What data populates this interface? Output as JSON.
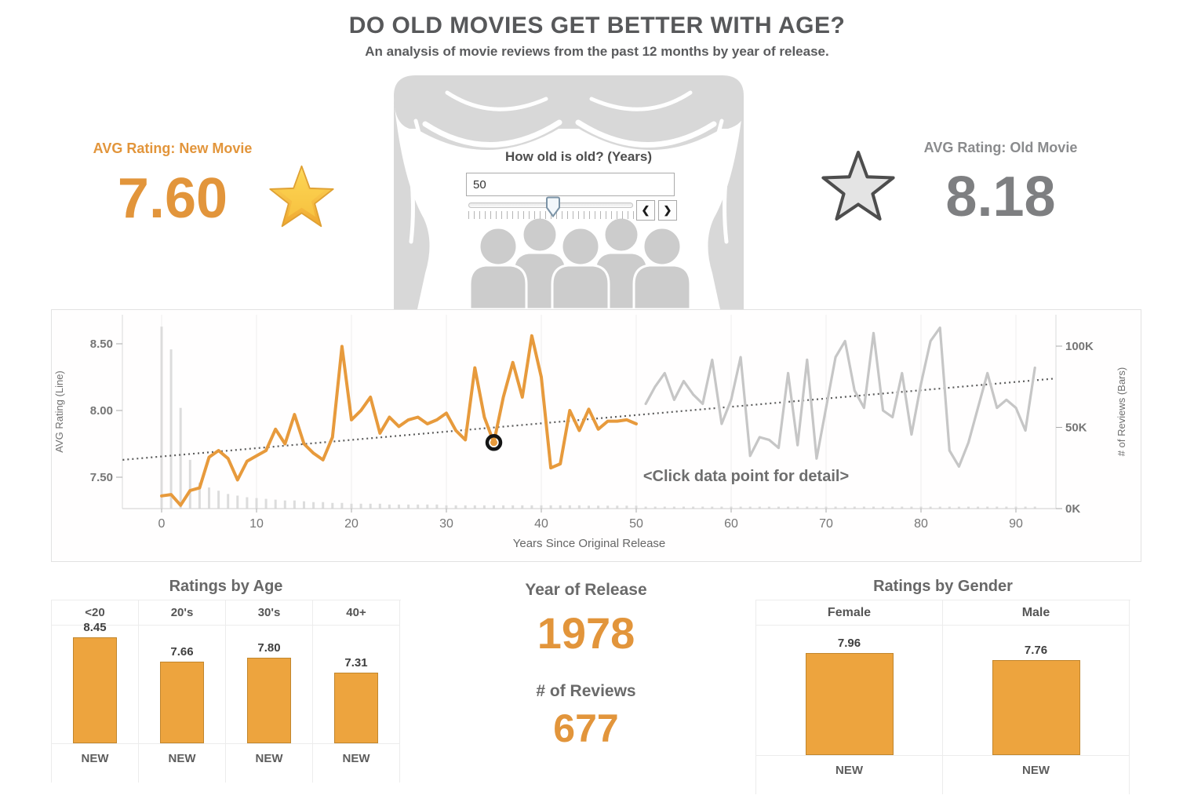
{
  "header": {
    "title": "DO OLD MOVIES GET BETTER WITH AGE?",
    "subtitle": "An analysis of movie reviews from the past 12 months by year of release."
  },
  "kpi": {
    "new_movie": {
      "label": "AVG Rating: New Movie",
      "value": "7.60"
    },
    "old_movie": {
      "label": "AVG Rating: Old Movie",
      "value": "8.18"
    }
  },
  "slider": {
    "label": "How old is old? (Years)",
    "value": "50",
    "prev_icon": "❮",
    "next_icon": "❯"
  },
  "colors": {
    "accent_orange": "#E79A3C",
    "line_gray": "#C6C6C6",
    "bars_gray": "#DCDCDC",
    "text_gray": "#6e6e6e"
  },
  "detail_panel": {
    "year_label": "Year of Release",
    "year_value": "1978",
    "reviews_label": "# of Reviews",
    "reviews_value": "677"
  },
  "chart_data": [
    {
      "type": "line+bar",
      "xlabel": "Years Since Original Release",
      "ylabel_left": "AVG Rating (Line)",
      "ylabel_right": "# of Reviews (Bars)",
      "annotation": "<Click data point for detail>",
      "x_ticks": [
        0,
        10,
        20,
        30,
        40,
        50,
        60,
        70,
        80,
        90
      ],
      "y_ticks_left": [
        "8.50",
        "8.00",
        "7.50"
      ],
      "y_tick_left_values": [
        8.5,
        8.0,
        7.5
      ],
      "y_ticks_right": [
        "100K",
        "50K",
        "0K"
      ],
      "y_tick_right_values": [
        100,
        50,
        0
      ],
      "ylim_left": [
        7.25,
        8.72
      ],
      "ylim_right_k": [
        0,
        105
      ],
      "legend_position": "none",
      "grid": true,
      "selected_point": {
        "x": 35,
        "y": 7.76
      },
      "trend": {
        "style": "dotted",
        "points": [
          [
            -4.1,
            7.63
          ],
          [
            94.2,
            8.24
          ]
        ]
      },
      "series": [
        {
          "name": "new-movies-avg-rating",
          "color": "#E79A3C",
          "x_start": 0,
          "values": [
            7.36,
            7.37,
            7.29,
            7.4,
            7.42,
            7.65,
            7.7,
            7.64,
            7.48,
            7.62,
            7.66,
            7.7,
            7.86,
            7.75,
            7.97,
            7.75,
            7.68,
            7.63,
            7.8,
            8.48,
            7.93,
            8.0,
            8.1,
            7.83,
            7.95,
            7.88,
            7.93,
            7.95,
            7.9,
            7.93,
            7.98,
            7.85,
            7.78,
            8.32,
            7.95,
            7.76,
            8.1,
            8.36,
            8.1,
            8.56,
            8.25,
            7.57,
            7.6,
            8.0,
            7.85,
            8.01,
            7.86,
            7.92,
            7.92,
            7.93,
            7.9
          ]
        },
        {
          "name": "old-movies-avg-rating",
          "color": "#C6C6C6",
          "x_start": 51,
          "values": [
            8.05,
            8.18,
            8.28,
            8.08,
            8.22,
            8.12,
            8.05,
            8.38,
            7.9,
            8.08,
            8.4,
            7.66,
            7.8,
            7.78,
            7.72,
            8.28,
            7.74,
            8.38,
            7.64,
            8.02,
            8.4,
            8.52,
            8.15,
            8.02,
            8.58,
            8.0,
            7.95,
            8.28,
            7.82,
            8.2,
            8.52,
            8.62,
            7.7,
            7.58,
            7.76,
            8.02,
            8.28,
            8.02,
            8.08,
            8.02,
            7.85,
            8.32
          ]
        },
        {
          "name": "review-count-bars-k",
          "color": "#DCDCDC",
          "x_start": 0,
          "values": [
            112,
            98,
            62,
            30,
            16,
            13,
            11,
            9,
            8,
            7,
            6.5,
            6,
            5.5,
            5,
            5,
            4.5,
            4,
            4,
            3.5,
            3.5,
            3,
            3,
            3,
            3,
            2.5,
            2.5,
            2.5,
            2.5,
            2.5,
            2.5,
            2,
            2,
            2,
            2,
            2,
            2,
            2,
            2,
            2,
            2,
            2,
            2,
            2,
            2,
            2,
            1.8,
            1.8,
            1.8,
            1.8,
            1.8,
            1.8,
            1.2,
            1.2,
            1.2,
            1.2,
            1.2,
            1.2,
            1.2,
            1.2,
            1.2,
            1.2,
            1.2,
            1.2,
            1.2,
            1.2,
            1.2,
            1.2,
            1.2,
            1.2,
            1.2,
            1.2,
            1.2,
            1.2,
            1.2,
            1.2,
            1.2,
            1.2,
            1.2,
            1.2,
            1.2,
            1.2,
            1.2,
            1.2,
            1.2,
            1.2,
            1.2,
            1.2,
            1.2,
            1.2,
            1.2,
            1.2,
            1.2,
            1.2
          ]
        }
      ]
    },
    {
      "type": "bar",
      "title": "Ratings by Age",
      "categories": [
        "<20",
        "20's",
        "30's",
        "40+"
      ],
      "values": [
        8.45,
        7.66,
        7.8,
        7.31
      ],
      "value_labels": [
        "8.45",
        "7.66",
        "7.80",
        "7.31"
      ],
      "badges": [
        "NEW",
        "NEW",
        "NEW",
        "NEW"
      ],
      "bar_color": "#EDA43E"
    },
    {
      "type": "bar",
      "title": "Ratings by Gender",
      "categories": [
        "Female",
        "Male"
      ],
      "values": [
        7.96,
        7.76
      ],
      "value_labels": [
        "7.96",
        "7.76"
      ],
      "badges": [
        "NEW",
        "NEW"
      ],
      "bar_color": "#EDA43E"
    }
  ]
}
